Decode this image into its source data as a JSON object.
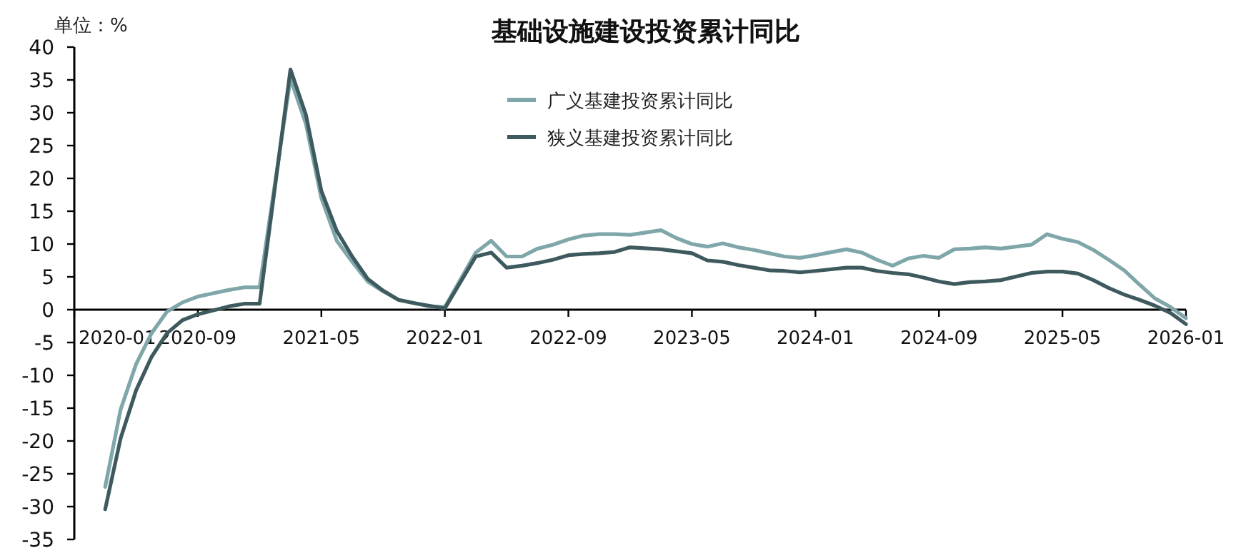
{
  "chart_data": {
    "type": "line",
    "title": "基础设施建设投资累计同比",
    "ylabel": "单位：%",
    "x": [
      "2020-03",
      "2020-04",
      "2020-05",
      "2020-06",
      "2020-07",
      "2020-08",
      "2020-09",
      "2020-10",
      "2020-11",
      "2020-12",
      "2021-01",
      "2021-03",
      "2021-04",
      "2021-05",
      "2021-06",
      "2021-07",
      "2021-08",
      "2021-09",
      "2021-10",
      "2021-11",
      "2021-12",
      "2022-01",
      "2022-03",
      "2022-04",
      "2022-05",
      "2022-06",
      "2022-07",
      "2022-08",
      "2022-09",
      "2022-10",
      "2022-11",
      "2022-12",
      "2023-01",
      "2023-03",
      "2023-04",
      "2023-05",
      "2023-06",
      "2023-07",
      "2023-08",
      "2023-09",
      "2023-10",
      "2023-11",
      "2023-12",
      "2024-01",
      "2024-03",
      "2024-04",
      "2024-05",
      "2024-06",
      "2024-07",
      "2024-08",
      "2024-09",
      "2024-10",
      "2024-11",
      "2024-12",
      "2025-01",
      "2025-03",
      "2025-04",
      "2025-05",
      "2025-06",
      "2025-07",
      "2025-08",
      "2025-09",
      "2025-10",
      "2025-11",
      "2025-12",
      "2026-01"
    ],
    "series": [
      {
        "name": "广义基建投资累计同比",
        "color": "#7fa6a8",
        "values": [
          -27.0,
          -15.2,
          -8.3,
          -3.6,
          -0.3,
          1.1,
          2.0,
          2.5,
          3.0,
          3.4,
          3.4,
          35.2,
          28.3,
          17.0,
          10.5,
          7.3,
          4.3,
          2.8,
          1.5,
          1.0,
          0.5,
          0.4,
          8.7,
          10.5,
          8.1,
          8.1,
          9.3,
          9.9,
          10.7,
          11.3,
          11.5,
          11.5,
          11.4,
          12.1,
          10.9,
          10.0,
          9.6,
          10.1,
          9.5,
          9.1,
          8.6,
          8.1,
          7.9,
          8.3,
          9.2,
          8.7,
          7.6,
          6.7,
          7.8,
          8.2,
          7.9,
          9.2,
          9.3,
          9.5,
          9.3,
          9.9,
          11.5,
          10.8,
          10.3,
          9.1,
          7.6,
          6.0,
          3.8,
          1.7,
          0.4,
          -1.3
        ]
      },
      {
        "name": "狭义基建投资累计同比",
        "color": "#3e5a5e",
        "values": [
          -30.4,
          -19.6,
          -12.3,
          -7.2,
          -3.6,
          -1.6,
          -0.7,
          -0.1,
          0.5,
          0.9,
          0.9,
          36.6,
          29.7,
          18.1,
          12.0,
          8.1,
          4.7,
          2.9,
          1.5,
          1.0,
          0.6,
          0.2,
          8.1,
          8.7,
          6.4,
          6.7,
          7.1,
          7.6,
          8.3,
          8.5,
          8.6,
          8.8,
          9.5,
          9.2,
          8.9,
          8.6,
          7.5,
          7.3,
          6.8,
          6.4,
          6.0,
          5.9,
          5.7,
          5.9,
          6.4,
          6.4,
          5.9,
          5.6,
          5.4,
          4.9,
          4.3,
          3.9,
          4.2,
          4.3,
          4.5,
          5.6,
          5.8,
          5.8,
          5.5,
          4.5,
          3.3,
          2.3,
          1.5,
          0.6,
          -0.5,
          -2.2
        ]
      }
    ],
    "xlim": [
      "2020-01",
      "2026-01"
    ],
    "xticks": [
      "2020-01",
      "2020-09",
      "2021-05",
      "2022-01",
      "2022-09",
      "2023-05",
      "2024-01",
      "2024-09",
      "2025-05",
      "2026-01"
    ],
    "ylim": [
      -35,
      40
    ],
    "yticks": [
      -35,
      -30,
      -25,
      -20,
      -15,
      -10,
      -5,
      0,
      5,
      10,
      15,
      20,
      25,
      30,
      35,
      40
    ],
    "legend": "top"
  }
}
